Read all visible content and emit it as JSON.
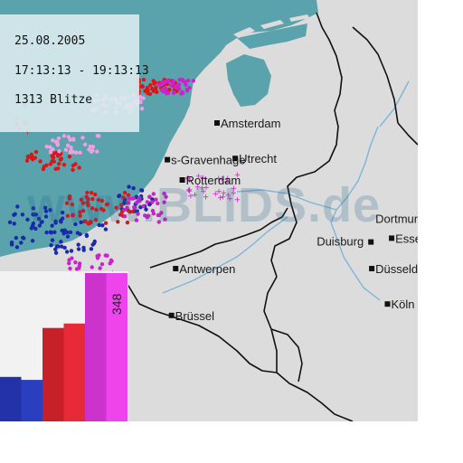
{
  "info": {
    "date": "25.08.2005",
    "time_range": "17:13:13 - 19:13:13",
    "count": "1313 Blitze"
  },
  "watermark": "www.BLIDS.de",
  "cities": [
    {
      "name": "Amsterdam",
      "lon": 4.9,
      "lat": 52.37
    },
    {
      "name": "Utrecht",
      "lon": 5.12,
      "lat": 52.09
    },
    {
      "name": "s-Gravenhage",
      "lon": 4.3,
      "lat": 52.08
    },
    {
      "name": "Rotterdam",
      "lon": 4.48,
      "lat": 51.92
    },
    {
      "name": "Dortmund",
      "lon": 7.47,
      "lat": 51.51
    },
    {
      "name": "Essen",
      "lon": 7.01,
      "lat": 51.46
    },
    {
      "name": "Duisburg",
      "lon": 6.76,
      "lat": 51.43
    },
    {
      "name": "Düsseldorf",
      "lon": 6.77,
      "lat": 51.22
    },
    {
      "name": "Antwerpen",
      "lon": 4.4,
      "lat": 51.22
    },
    {
      "name": "Köln",
      "lon": 6.96,
      "lat": 50.94
    },
    {
      "name": "Brüssel",
      "lon": 4.35,
      "lat": 50.85
    }
  ],
  "legend": {
    "bars": [
      {
        "color": "#2233aa",
        "level": 0.3
      },
      {
        "color": "#2a3fc0",
        "level": 0.28
      },
      {
        "color": "#c8202a",
        "level": 0.63
      },
      {
        "color": "#e62a36",
        "level": 0.66
      },
      {
        "color": "#cc33cc",
        "level": 1.0
      },
      {
        "color": "#ee44ee",
        "level": 1.0
      }
    ],
    "max_label": "348"
  },
  "strikes": {
    "blue": "#1a2aa8",
    "red": "#d81818",
    "magenta": "#cc22cc",
    "pink": "#f0a0e0"
  },
  "colors": {
    "sea": "#5aa3ad",
    "land": "#dcdcdc",
    "border": "#111111",
    "river": "#7fb4d6"
  }
}
